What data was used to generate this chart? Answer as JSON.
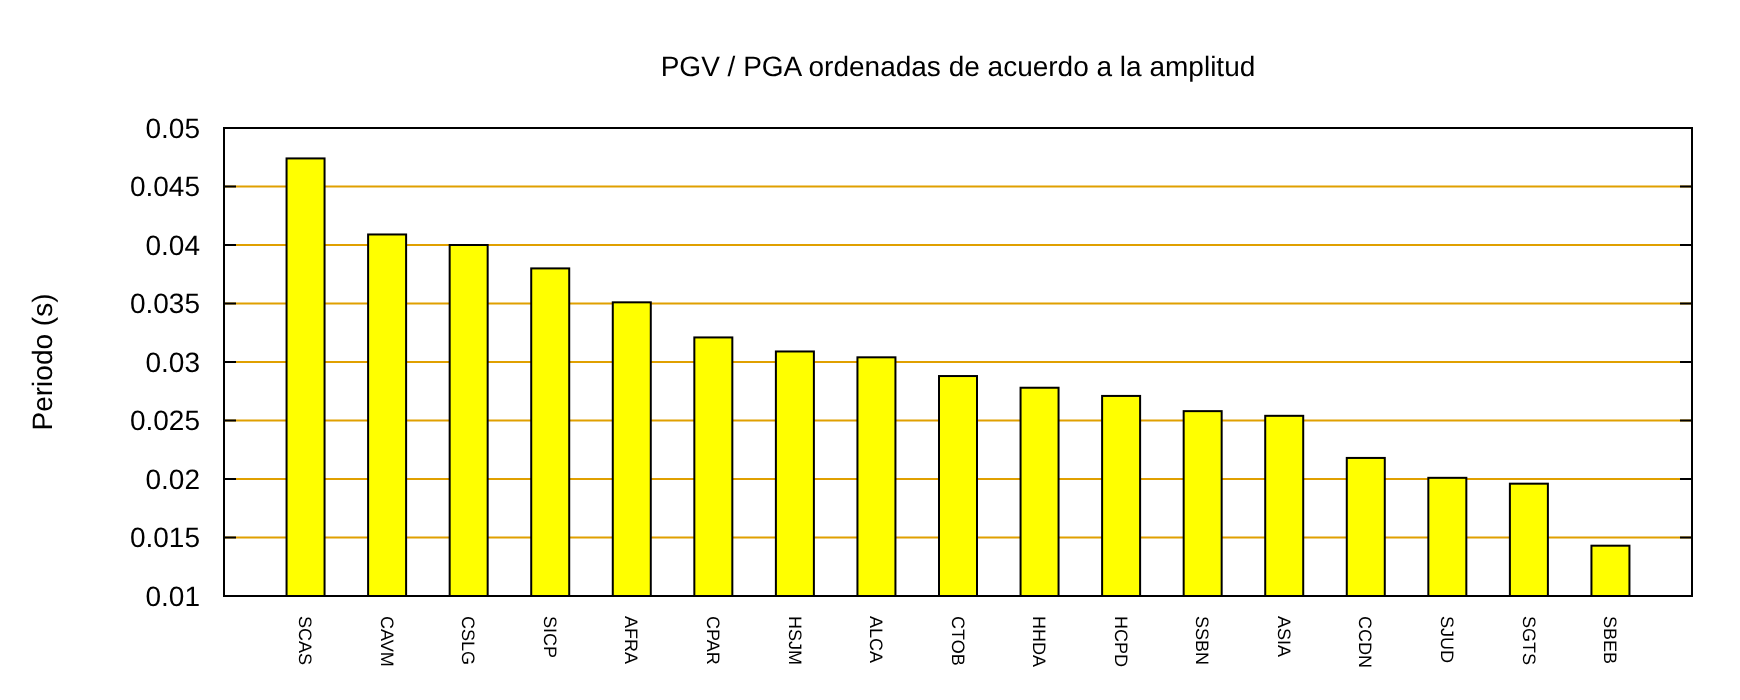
{
  "chart_data": {
    "type": "bar",
    "title": "PGV / PGA ordenadas de acuerdo a la amplitud",
    "ylabel": "Periodo (s)",
    "categories": [
      "SCAS",
      "CAVM",
      "CSLG",
      "SICP",
      "AFRA",
      "CPAR",
      "HSJM",
      "ALCA",
      "CTOB",
      "HHDA",
      "HCPD",
      "SSBN",
      "ASIA",
      "CCDN",
      "SJUD",
      "SGTS",
      "SBEB"
    ],
    "values": [
      0.0474,
      0.0409,
      0.04,
      0.038,
      0.0351,
      0.0321,
      0.0309,
      0.0304,
      0.0288,
      0.0278,
      0.0271,
      0.0258,
      0.0254,
      0.0218,
      0.0201,
      0.0196,
      0.0143
    ],
    "color": "#ffff00",
    "ylim": [
      0.01,
      0.05
    ],
    "yticks": [
      0.01,
      0.015,
      0.02,
      0.025,
      0.03,
      0.035,
      0.04,
      0.045,
      0.05
    ],
    "grid": "y"
  }
}
